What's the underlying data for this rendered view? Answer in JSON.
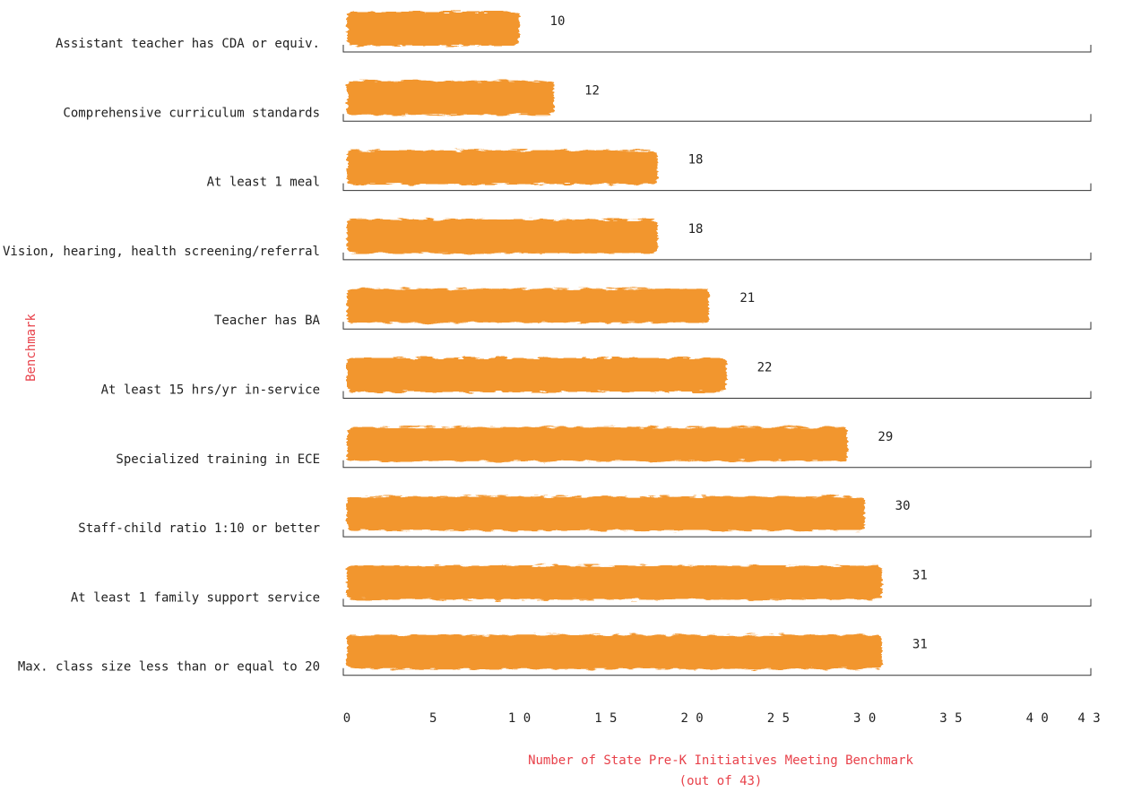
{
  "chart_data": {
    "type": "bar",
    "orientation": "horizontal",
    "categories": [
      "Assistant teacher has CDA or equiv.",
      "Comprehensive curriculum standards",
      "At least 1 meal",
      "Vision, hearing, health screening/referral",
      "Teacher has BA",
      "At least 15 hrs/yr in-service",
      "Specialized training in ECE",
      "Staff-child ratio 1:10 or better",
      "At least 1 family support service",
      "Max. class size less than or equal to 20"
    ],
    "values": [
      10,
      12,
      18,
      18,
      21,
      22,
      29,
      30,
      31,
      31
    ],
    "xlabel_line1": "Number of State Pre-K Initiatives Meeting Benchmark",
    "xlabel_line2": "(out of 43)",
    "ylabel": "Benchmark",
    "x_ticks": [
      "0",
      "5",
      "1 0",
      "1 5",
      "2 0",
      "2 5",
      "3 0",
      "3 5",
      "4 0",
      "4 3"
    ],
    "x_tick_values": [
      0,
      5,
      10,
      15,
      20,
      25,
      30,
      35,
      40,
      43
    ],
    "xlim": [
      0,
      43
    ],
    "grid": false,
    "colors": {
      "bar": "#F2962E",
      "axis_title": "#E8414A",
      "text": "#222222"
    }
  }
}
